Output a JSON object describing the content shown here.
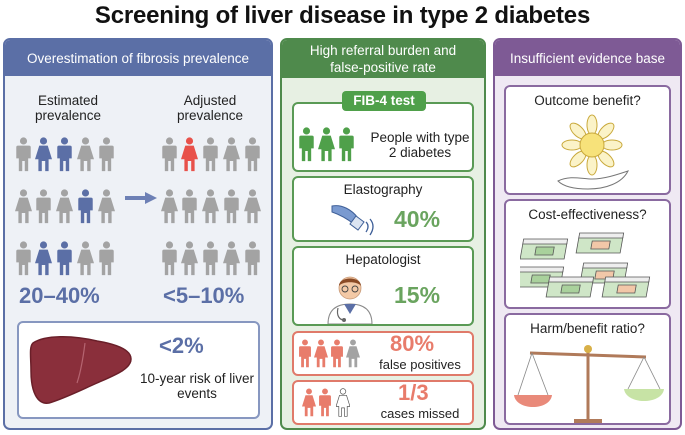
{
  "title": "Screening of liver disease in type 2 diabetes",
  "panel1": {
    "heading": "Overestimation of fibrosis prevalence",
    "estimated_label": "Estimated prevalence",
    "adjusted_label": "Adjusted prevalence",
    "estimated_value": "20–40%",
    "adjusted_value": "<5–10%",
    "liver_value": "<2%",
    "liver_text": "10-year risk of liver events",
    "colors": {
      "grey": "#a3a3a3",
      "blue": "#5b6fa6",
      "red": "#e8514a",
      "liver": "#8a2f3b"
    }
  },
  "panel2": {
    "heading": "High referral burden and false-positive rate",
    "fib4_label": "FIB-4 test",
    "fib4_text": "People with type 2 diabetes",
    "elasto_label": "Elastography",
    "elasto_value": "40%",
    "hepato_label": "Hepatologist",
    "hepato_value": "15%",
    "fp_value": "80%",
    "fp_text": "false positives",
    "missed_value": "1/3",
    "missed_text": "cases missed",
    "colors": {
      "green": "#4fa04a",
      "salmon": "#e87c6b"
    }
  },
  "panel3": {
    "heading": "Insufficient evidence base",
    "box1": "Outcome benefit?",
    "box2": "Cost-effectiveness?",
    "box3": "Harm/benefit ratio?"
  }
}
